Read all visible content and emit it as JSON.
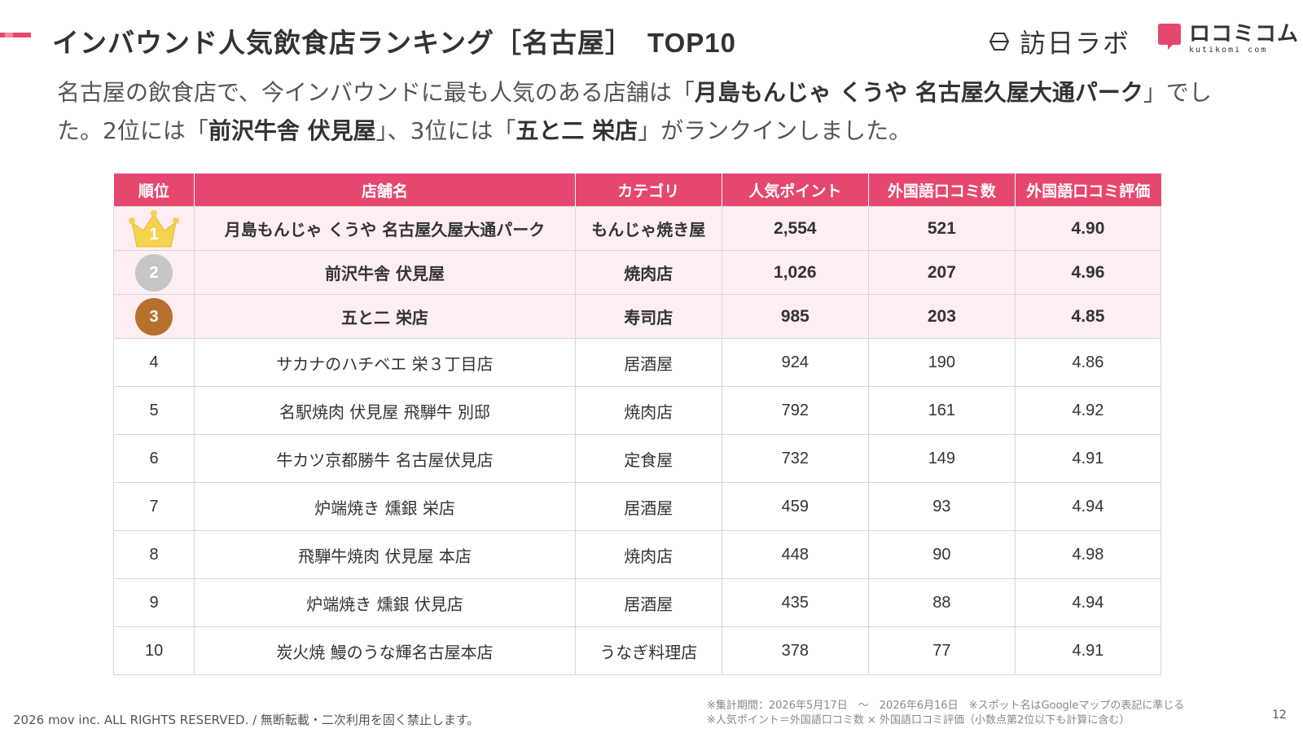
{
  "header": {
    "title": "インバウンド人気飲食店ランキング［名古屋］",
    "title_suffix": "TOP10",
    "accent_color": "#e6476e",
    "logo_houjin": "訪日ラボ",
    "logo_kutikomi": "ロコミコム",
    "logo_kutikomi_en": "kutikomi com"
  },
  "summary": {
    "p1": "名古屋の飲食店で、今インバウンドに最も人気のある店舗は「",
    "b1": "月島もんじゃ くうや 名古屋久屋大通パーク",
    "p2": "」でした。2位には「",
    "b2": "前沢牛舎 伏見屋",
    "p3": "」、3位には「",
    "b3": "五と二 栄店",
    "p4": "」がランクインしました。"
  },
  "table": {
    "headers": [
      "順位",
      "店舗名",
      "カテゴリ",
      "人気ポイント",
      "外国語口コミ数",
      "外国語口コミ評価"
    ],
    "rows": [
      {
        "rank": "1",
        "name": "月島もんじゃ くうや 名古屋久屋大通パーク",
        "category": "もんじゃ焼き屋",
        "points": "2,554",
        "reviews": "521",
        "rating": "4.90",
        "badge": "gold-crown"
      },
      {
        "rank": "2",
        "name": "前沢牛舎 伏見屋",
        "category": "焼肉店",
        "points": "1,026",
        "reviews": "207",
        "rating": "4.96",
        "badge": "silver-medal"
      },
      {
        "rank": "3",
        "name": "五と二 栄店",
        "category": "寿司店",
        "points": "985",
        "reviews": "203",
        "rating": "4.85",
        "badge": "bronze-medal"
      },
      {
        "rank": "4",
        "name": "サカナのハチベエ 栄３丁目店",
        "category": "居酒屋",
        "points": "924",
        "reviews": "190",
        "rating": "4.86"
      },
      {
        "rank": "5",
        "name": "名駅焼肉 伏見屋 飛騨牛 別邸",
        "category": "焼肉店",
        "points": "792",
        "reviews": "161",
        "rating": "4.92"
      },
      {
        "rank": "6",
        "name": "牛カツ京都勝牛 名古屋伏見店",
        "category": "定食屋",
        "points": "732",
        "reviews": "149",
        "rating": "4.91"
      },
      {
        "rank": "7",
        "name": "炉端焼き 燻銀 栄店",
        "category": "居酒屋",
        "points": "459",
        "reviews": "93",
        "rating": "4.94"
      },
      {
        "rank": "8",
        "name": "飛騨牛焼肉 伏見屋 本店",
        "category": "焼肉店",
        "points": "448",
        "reviews": "90",
        "rating": "4.98"
      },
      {
        "rank": "9",
        "name": "炉端焼き 燻銀 伏見店",
        "category": "居酒屋",
        "points": "435",
        "reviews": "88",
        "rating": "4.94"
      },
      {
        "rank": "10",
        "name": "炭火焼 鰻のうな輝名古屋本店",
        "category": "うなぎ料理店",
        "points": "378",
        "reviews": "77",
        "rating": "4.91"
      }
    ]
  },
  "footer": {
    "copyright": "2026 mov inc. ALL RIGHTS RESERVED. / 無断転載・二次利用を固く禁止します。",
    "note1": "※集計期間：2026年5月17日　～　2026年6月16日　※スポット名はGoogleマップの表記に準じる",
    "note2": "※人気ポイント＝外国語口コミ数 × 外国語口コミ評価（小数点第2位以下も計算に含む）",
    "page_number": "12"
  }
}
